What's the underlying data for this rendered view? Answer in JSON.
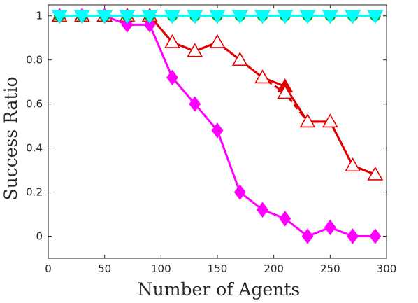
{
  "chart_data": {
    "type": "line",
    "xlabel": "Number of Agents",
    "ylabel": "Success Ratio",
    "title": "",
    "xlim": [
      0,
      300
    ],
    "ylim": [
      -0.1,
      1.05
    ],
    "xticks": [
      0,
      50,
      100,
      150,
      200,
      250,
      300
    ],
    "yticks": [
      0,
      0.2,
      0.4,
      0.6,
      0.8,
      1
    ],
    "ytick_labels": [
      "0",
      "0.2",
      "0.4",
      "0.6",
      "0.8",
      "1"
    ],
    "grid": false,
    "legend": "none",
    "x": [
      10,
      30,
      50,
      70,
      90,
      110,
      130,
      150,
      170,
      190,
      210,
      230,
      250,
      270,
      290
    ],
    "series": [
      {
        "color": "#e00000",
        "marker": "triangle-up",
        "filled": true,
        "dashed": false,
        "values": [
          1,
          1,
          1,
          1,
          1,
          0.88,
          0.84,
          0.88,
          0.8,
          0.72,
          0.68,
          0.52,
          0.52,
          0.32,
          0.28
        ]
      },
      {
        "color": "#e00000",
        "marker": "triangle-up",
        "filled": false,
        "dashed": true,
        "values": [
          1,
          1,
          1,
          1,
          1,
          0.88,
          0.84,
          0.88,
          0.8,
          0.72,
          0.65,
          0.52,
          0.52,
          0.32,
          0.28
        ]
      },
      {
        "color": "#ff00ff",
        "marker": "diamond",
        "filled": true,
        "dashed": false,
        "values": [
          1,
          1,
          1,
          0.96,
          0.96,
          0.72,
          0.6,
          0.48,
          0.2,
          0.12,
          0.08,
          0.0,
          0.04,
          0.0,
          0.0
        ]
      },
      {
        "color": "#00aa00",
        "marker": "circle",
        "filled": true,
        "dashed": false,
        "values": [
          1,
          1,
          1,
          1,
          1,
          1,
          1,
          1,
          1,
          1,
          1,
          1,
          1,
          1,
          1
        ]
      },
      {
        "color": "#0000cc",
        "marker": "triangle-down",
        "filled": true,
        "dashed": false,
        "values": [
          1,
          1,
          1,
          1,
          1,
          1,
          1,
          1,
          1,
          1,
          1,
          1,
          1,
          1,
          1
        ]
      },
      {
        "color": "#00ffff",
        "marker": "triangle-down",
        "filled": true,
        "dashed": false,
        "values": [
          1,
          1,
          1,
          1,
          1,
          1,
          1,
          1,
          1,
          1,
          1,
          1,
          1,
          1,
          1
        ]
      }
    ]
  }
}
